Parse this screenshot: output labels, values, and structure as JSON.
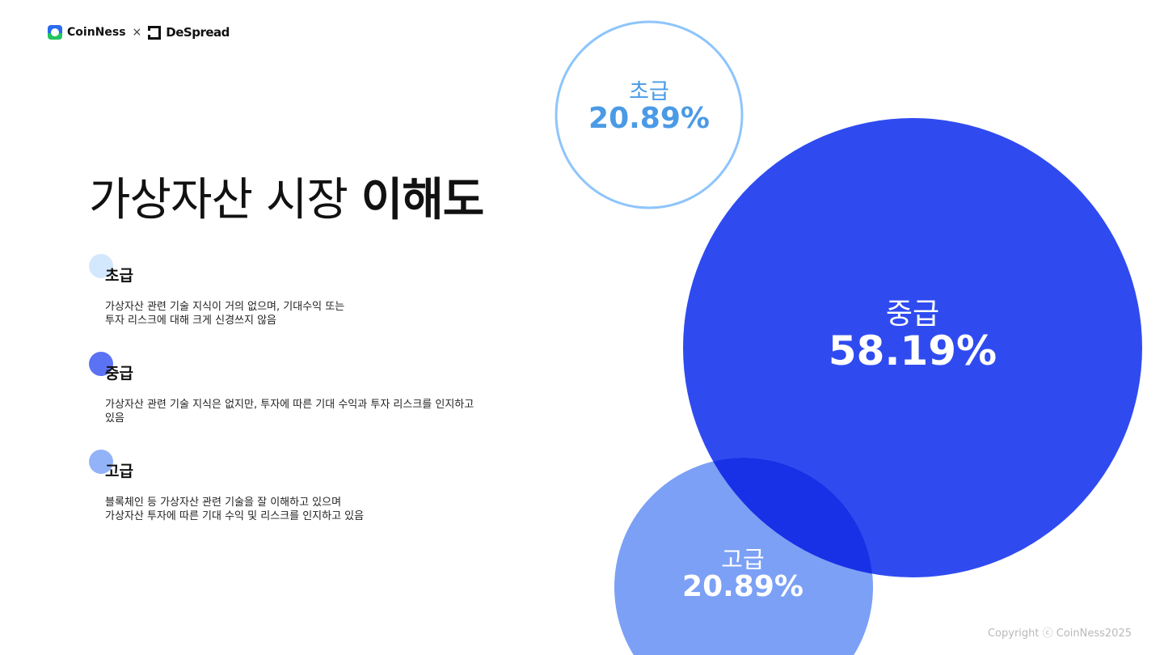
{
  "brand": {
    "coinness": "CoinNess",
    "times": "×",
    "despread": "DeSpread"
  },
  "title": {
    "light": "가상자산 시장",
    "bold": "이해도"
  },
  "legend": [
    {
      "label": "초급",
      "color": "#d3e8fd",
      "desc_lines": [
        "가상자산 관련 기술 지식이 거의 없으며, 기대수익 또는",
        "투자 리스크에 대해 크게 신경쓰지 않음"
      ]
    },
    {
      "label": "중급",
      "color": "#5b72f4",
      "desc_lines": [
        "가상자산 관련 기술 지식은 없지만, 투자에 따른 기대 수익과 투자 리스크를 인지하고",
        "있음"
      ]
    },
    {
      "label": "고급",
      "color": "#93b3f8",
      "desc_lines": [
        "블록체인 등 가상자산 관련 기술을 잘 이해하고 있으며",
        "가상자산 투자에 따른 기대 수익 및 리스크를 인지하고 있음"
      ]
    }
  ],
  "chart_data": {
    "type": "bubble",
    "categories": [
      "초급",
      "중급",
      "고급"
    ],
    "values": [
      20.89,
      58.19,
      20.89
    ],
    "value_labels": [
      "20.89%",
      "58.19%",
      "20.89%"
    ],
    "colors": {
      "초급": "#8ec5fb",
      "중급": "#2f4bf0",
      "고급": "#7ba0f5",
      "overlap": "#1830e6"
    }
  },
  "footer": {
    "copyright": "Copyright ⓒ CoinNess2025"
  }
}
